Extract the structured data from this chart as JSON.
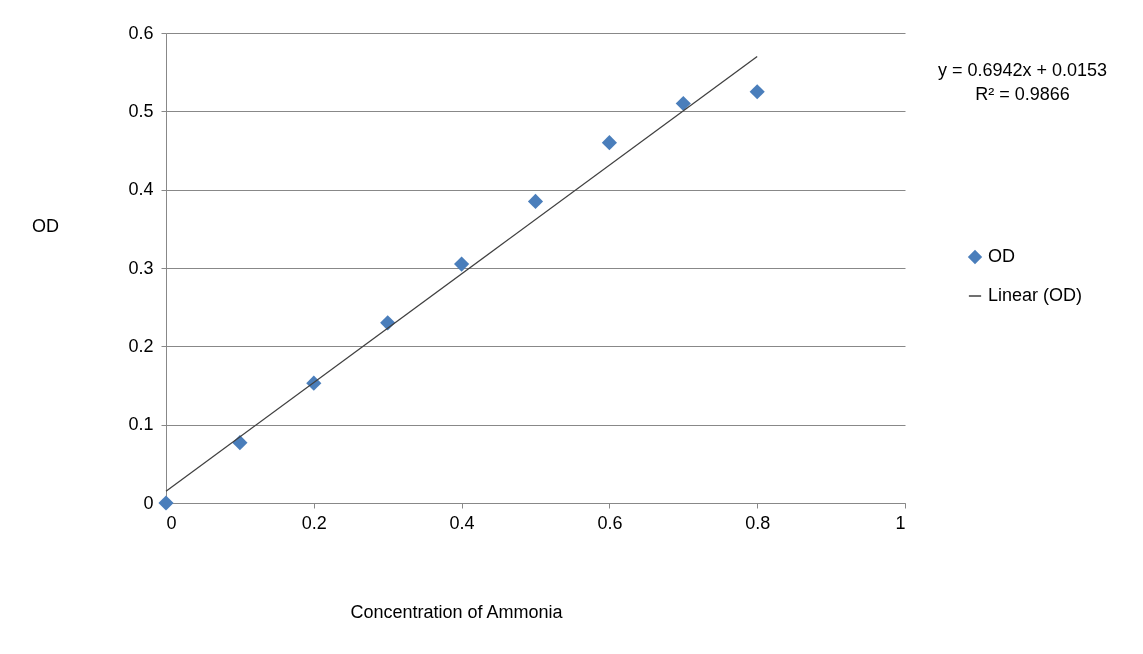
{
  "chart_data": {
    "type": "scatter",
    "xlabel": "Concentration of Ammonia",
    "ylabel": "OD",
    "x": [
      0,
      0.1,
      0.2,
      0.3,
      0.4,
      0.5,
      0.6,
      0.7,
      0.8
    ],
    "series": [
      {
        "name": "OD",
        "color": "#4a7ebb",
        "values": [
          0,
          0.077,
          0.153,
          0.23,
          0.305,
          0.385,
          0.46,
          0.51,
          0.525
        ],
        "marker": "diamond"
      },
      {
        "name": "Linear (OD)",
        "type": "line",
        "color": "#404040",
        "x": [
          0,
          0.8
        ],
        "values": [
          0.015,
          0.57
        ]
      }
    ],
    "xlim": [
      0,
      1
    ],
    "ylim": [
      0,
      0.6
    ],
    "xticks": [
      0,
      0.2,
      0.4,
      0.6,
      0.8,
      1
    ],
    "yticks": [
      0,
      0.1,
      0.2,
      0.3,
      0.4,
      0.5,
      0.6
    ],
    "grid": "y",
    "legend": "right",
    "annotations": [
      "y = 0.6942x + 0.0153",
      "R² = 0.9866"
    ]
  }
}
